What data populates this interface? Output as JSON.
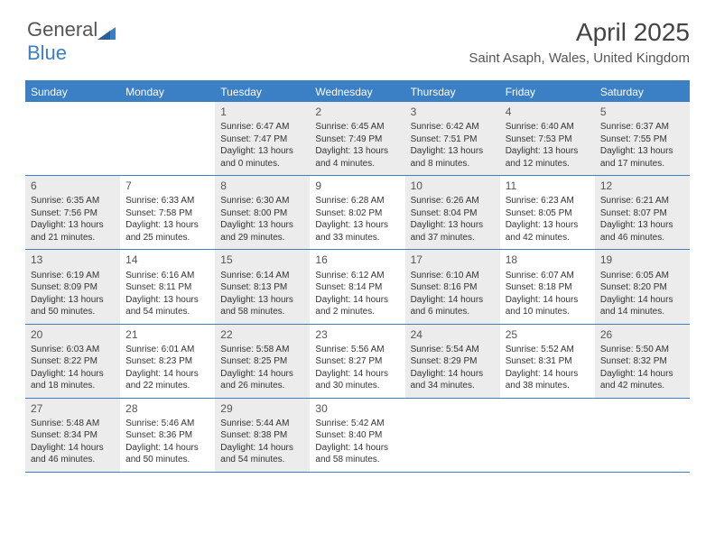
{
  "brand": {
    "part1": "General",
    "part2": "Blue"
  },
  "title": "April 2025",
  "location": "Saint Asaph, Wales, United Kingdom",
  "colors": {
    "accent": "#3b7fc4",
    "shade": "#ececec",
    "text": "#333333",
    "white": "#ffffff"
  },
  "dayHeaders": [
    "Sunday",
    "Monday",
    "Tuesday",
    "Wednesday",
    "Thursday",
    "Friday",
    "Saturday"
  ],
  "weeks": [
    [
      {
        "day": "",
        "shade": false
      },
      {
        "day": "",
        "shade": false
      },
      {
        "day": "1",
        "shade": true,
        "sunrise": "Sunrise: 6:47 AM",
        "sunset": "Sunset: 7:47 PM",
        "daylight1": "Daylight: 13 hours",
        "daylight2": "and 0 minutes."
      },
      {
        "day": "2",
        "shade": true,
        "sunrise": "Sunrise: 6:45 AM",
        "sunset": "Sunset: 7:49 PM",
        "daylight1": "Daylight: 13 hours",
        "daylight2": "and 4 minutes."
      },
      {
        "day": "3",
        "shade": true,
        "sunrise": "Sunrise: 6:42 AM",
        "sunset": "Sunset: 7:51 PM",
        "daylight1": "Daylight: 13 hours",
        "daylight2": "and 8 minutes."
      },
      {
        "day": "4",
        "shade": true,
        "sunrise": "Sunrise: 6:40 AM",
        "sunset": "Sunset: 7:53 PM",
        "daylight1": "Daylight: 13 hours",
        "daylight2": "and 12 minutes."
      },
      {
        "day": "5",
        "shade": true,
        "sunrise": "Sunrise: 6:37 AM",
        "sunset": "Sunset: 7:55 PM",
        "daylight1": "Daylight: 13 hours",
        "daylight2": "and 17 minutes."
      }
    ],
    [
      {
        "day": "6",
        "shade": true,
        "sunrise": "Sunrise: 6:35 AM",
        "sunset": "Sunset: 7:56 PM",
        "daylight1": "Daylight: 13 hours",
        "daylight2": "and 21 minutes."
      },
      {
        "day": "7",
        "shade": false,
        "sunrise": "Sunrise: 6:33 AM",
        "sunset": "Sunset: 7:58 PM",
        "daylight1": "Daylight: 13 hours",
        "daylight2": "and 25 minutes."
      },
      {
        "day": "8",
        "shade": true,
        "sunrise": "Sunrise: 6:30 AM",
        "sunset": "Sunset: 8:00 PM",
        "daylight1": "Daylight: 13 hours",
        "daylight2": "and 29 minutes."
      },
      {
        "day": "9",
        "shade": false,
        "sunrise": "Sunrise: 6:28 AM",
        "sunset": "Sunset: 8:02 PM",
        "daylight1": "Daylight: 13 hours",
        "daylight2": "and 33 minutes."
      },
      {
        "day": "10",
        "shade": true,
        "sunrise": "Sunrise: 6:26 AM",
        "sunset": "Sunset: 8:04 PM",
        "daylight1": "Daylight: 13 hours",
        "daylight2": "and 37 minutes."
      },
      {
        "day": "11",
        "shade": false,
        "sunrise": "Sunrise: 6:23 AM",
        "sunset": "Sunset: 8:05 PM",
        "daylight1": "Daylight: 13 hours",
        "daylight2": "and 42 minutes."
      },
      {
        "day": "12",
        "shade": true,
        "sunrise": "Sunrise: 6:21 AM",
        "sunset": "Sunset: 8:07 PM",
        "daylight1": "Daylight: 13 hours",
        "daylight2": "and 46 minutes."
      }
    ],
    [
      {
        "day": "13",
        "shade": true,
        "sunrise": "Sunrise: 6:19 AM",
        "sunset": "Sunset: 8:09 PM",
        "daylight1": "Daylight: 13 hours",
        "daylight2": "and 50 minutes."
      },
      {
        "day": "14",
        "shade": false,
        "sunrise": "Sunrise: 6:16 AM",
        "sunset": "Sunset: 8:11 PM",
        "daylight1": "Daylight: 13 hours",
        "daylight2": "and 54 minutes."
      },
      {
        "day": "15",
        "shade": true,
        "sunrise": "Sunrise: 6:14 AM",
        "sunset": "Sunset: 8:13 PM",
        "daylight1": "Daylight: 13 hours",
        "daylight2": "and 58 minutes."
      },
      {
        "day": "16",
        "shade": false,
        "sunrise": "Sunrise: 6:12 AM",
        "sunset": "Sunset: 8:14 PM",
        "daylight1": "Daylight: 14 hours",
        "daylight2": "and 2 minutes."
      },
      {
        "day": "17",
        "shade": true,
        "sunrise": "Sunrise: 6:10 AM",
        "sunset": "Sunset: 8:16 PM",
        "daylight1": "Daylight: 14 hours",
        "daylight2": "and 6 minutes."
      },
      {
        "day": "18",
        "shade": false,
        "sunrise": "Sunrise: 6:07 AM",
        "sunset": "Sunset: 8:18 PM",
        "daylight1": "Daylight: 14 hours",
        "daylight2": "and 10 minutes."
      },
      {
        "day": "19",
        "shade": true,
        "sunrise": "Sunrise: 6:05 AM",
        "sunset": "Sunset: 8:20 PM",
        "daylight1": "Daylight: 14 hours",
        "daylight2": "and 14 minutes."
      }
    ],
    [
      {
        "day": "20",
        "shade": true,
        "sunrise": "Sunrise: 6:03 AM",
        "sunset": "Sunset: 8:22 PM",
        "daylight1": "Daylight: 14 hours",
        "daylight2": "and 18 minutes."
      },
      {
        "day": "21",
        "shade": false,
        "sunrise": "Sunrise: 6:01 AM",
        "sunset": "Sunset: 8:23 PM",
        "daylight1": "Daylight: 14 hours",
        "daylight2": "and 22 minutes."
      },
      {
        "day": "22",
        "shade": true,
        "sunrise": "Sunrise: 5:58 AM",
        "sunset": "Sunset: 8:25 PM",
        "daylight1": "Daylight: 14 hours",
        "daylight2": "and 26 minutes."
      },
      {
        "day": "23",
        "shade": false,
        "sunrise": "Sunrise: 5:56 AM",
        "sunset": "Sunset: 8:27 PM",
        "daylight1": "Daylight: 14 hours",
        "daylight2": "and 30 minutes."
      },
      {
        "day": "24",
        "shade": true,
        "sunrise": "Sunrise: 5:54 AM",
        "sunset": "Sunset: 8:29 PM",
        "daylight1": "Daylight: 14 hours",
        "daylight2": "and 34 minutes."
      },
      {
        "day": "25",
        "shade": false,
        "sunrise": "Sunrise: 5:52 AM",
        "sunset": "Sunset: 8:31 PM",
        "daylight1": "Daylight: 14 hours",
        "daylight2": "and 38 minutes."
      },
      {
        "day": "26",
        "shade": true,
        "sunrise": "Sunrise: 5:50 AM",
        "sunset": "Sunset: 8:32 PM",
        "daylight1": "Daylight: 14 hours",
        "daylight2": "and 42 minutes."
      }
    ],
    [
      {
        "day": "27",
        "shade": true,
        "sunrise": "Sunrise: 5:48 AM",
        "sunset": "Sunset: 8:34 PM",
        "daylight1": "Daylight: 14 hours",
        "daylight2": "and 46 minutes."
      },
      {
        "day": "28",
        "shade": false,
        "sunrise": "Sunrise: 5:46 AM",
        "sunset": "Sunset: 8:36 PM",
        "daylight1": "Daylight: 14 hours",
        "daylight2": "and 50 minutes."
      },
      {
        "day": "29",
        "shade": true,
        "sunrise": "Sunrise: 5:44 AM",
        "sunset": "Sunset: 8:38 PM",
        "daylight1": "Daylight: 14 hours",
        "daylight2": "and 54 minutes."
      },
      {
        "day": "30",
        "shade": false,
        "sunrise": "Sunrise: 5:42 AM",
        "sunset": "Sunset: 8:40 PM",
        "daylight1": "Daylight: 14 hours",
        "daylight2": "and 58 minutes."
      },
      {
        "day": "",
        "shade": false
      },
      {
        "day": "",
        "shade": false
      },
      {
        "day": "",
        "shade": false
      }
    ]
  ]
}
